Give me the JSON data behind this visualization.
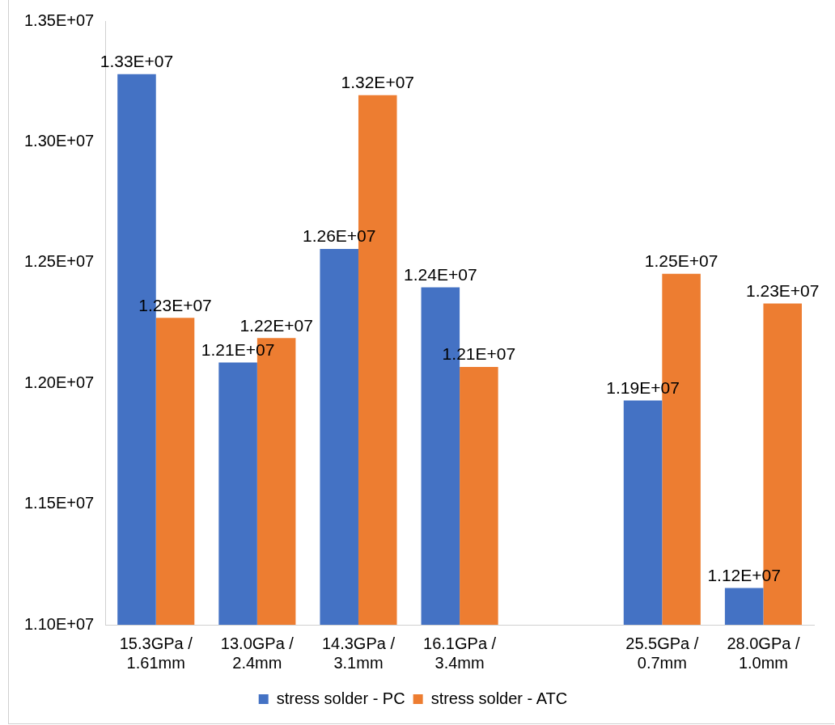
{
  "chart_data": {
    "type": "bar",
    "categories": [
      "15.3GPa / 1.61mm",
      "13.0GPa / 2.4mm",
      "14.3GPa / 3.1mm",
      "16.1GPa / 3.4mm",
      null,
      "25.5GPa / 0.7mm",
      "28.0GPa / 1.0mm"
    ],
    "series": [
      {
        "name": "stress solder - PC",
        "color": "#4472c4",
        "values": [
          13280000,
          12086000,
          12556000,
          12397000,
          null,
          11929000,
          11152000
        ],
        "value_labels": [
          "1.33E+07",
          "1.21E+07",
          "1.26E+07",
          "1.24E+07",
          null,
          "1.19E+07",
          "1.12E+07"
        ]
      },
      {
        "name": "stress solder - ATC",
        "color": "#ed7d31",
        "values": [
          12271000,
          12187000,
          13193000,
          12068000,
          null,
          12453000,
          12330000
        ],
        "value_labels": [
          "1.23E+07",
          "1.22E+07",
          "1.32E+07",
          "1.21E+07",
          null,
          "1.25E+07",
          "1.23E+07"
        ]
      }
    ],
    "ylim": [
      11000000,
      13500000
    ],
    "yticks": [
      {
        "value": 11000000,
        "label": "1.10E+07"
      },
      {
        "value": 11500000,
        "label": "1.15E+07"
      },
      {
        "value": 12000000,
        "label": "1.20E+07"
      },
      {
        "value": 12500000,
        "label": "1.25E+07"
      },
      {
        "value": 13000000,
        "label": "1.30E+07"
      },
      {
        "value": 13500000,
        "label": "1.35E+07"
      }
    ],
    "grid": false,
    "legend": "bottom"
  }
}
